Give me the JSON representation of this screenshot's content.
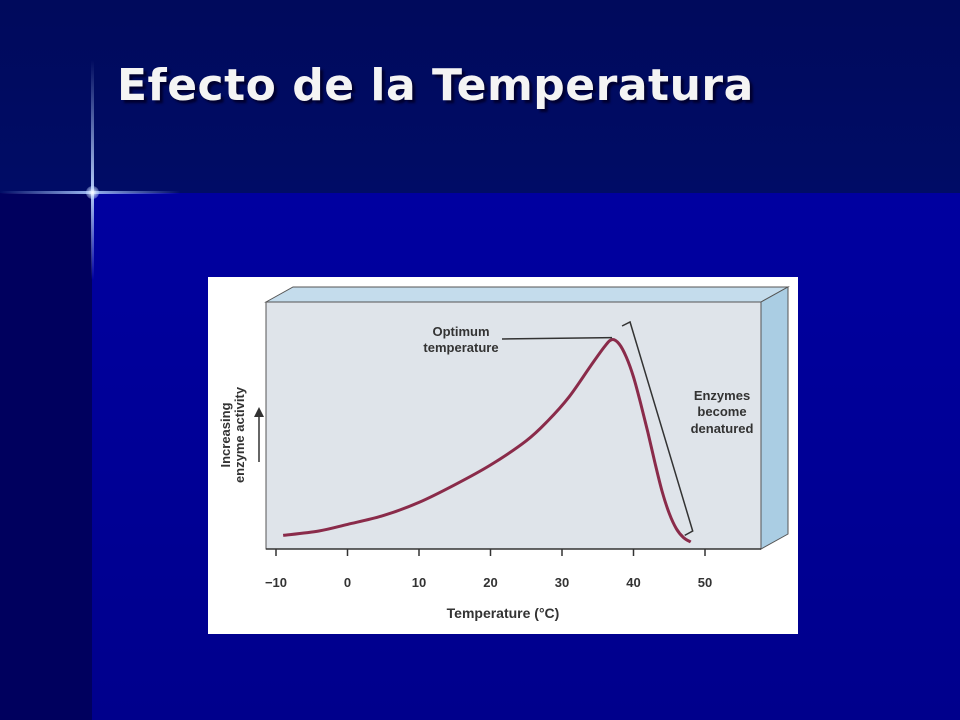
{
  "slide": {
    "title": "Efecto de la Temperatura"
  },
  "colors": {
    "background": "#00008c",
    "title": "#f4f4f4",
    "panel": "#dde3ea",
    "panel_edge": "#aed0e4",
    "curve": "#8a2b4a"
  },
  "chart_data": {
    "type": "line",
    "xlabel": "Temperature (°C)",
    "ylabel": "Increasing enzyme activity",
    "xlim": [
      -10,
      50
    ],
    "x_ticks": [
      "−10",
      "0",
      "10",
      "20",
      "30",
      "40",
      "50"
    ],
    "x_tick_values": [
      -10,
      0,
      10,
      20,
      30,
      40,
      50
    ],
    "series": [
      {
        "x": [
          -9,
          -4,
          0,
          5,
          10,
          15,
          20,
          25,
          28,
          31,
          34,
          36,
          37,
          38,
          39,
          40,
          41,
          42,
          43,
          44,
          45,
          46,
          47,
          48
        ],
        "y": [
          0.03,
          0.05,
          0.08,
          0.12,
          0.18,
          0.26,
          0.35,
          0.46,
          0.55,
          0.66,
          0.8,
          0.89,
          0.92,
          0.9,
          0.84,
          0.75,
          0.63,
          0.5,
          0.36,
          0.23,
          0.13,
          0.06,
          0.02,
          0.0
        ]
      }
    ],
    "annotations": [
      {
        "label": "Optimum\ntemperature",
        "line1": "Optimum",
        "line2": "temperature",
        "x": 37
      },
      {
        "label": "Enzymes\nbecome\ndenatured",
        "line1": "Enzymes",
        "line2": "become",
        "line3": "denatured",
        "x_range": [
          37,
          48
        ]
      }
    ]
  }
}
